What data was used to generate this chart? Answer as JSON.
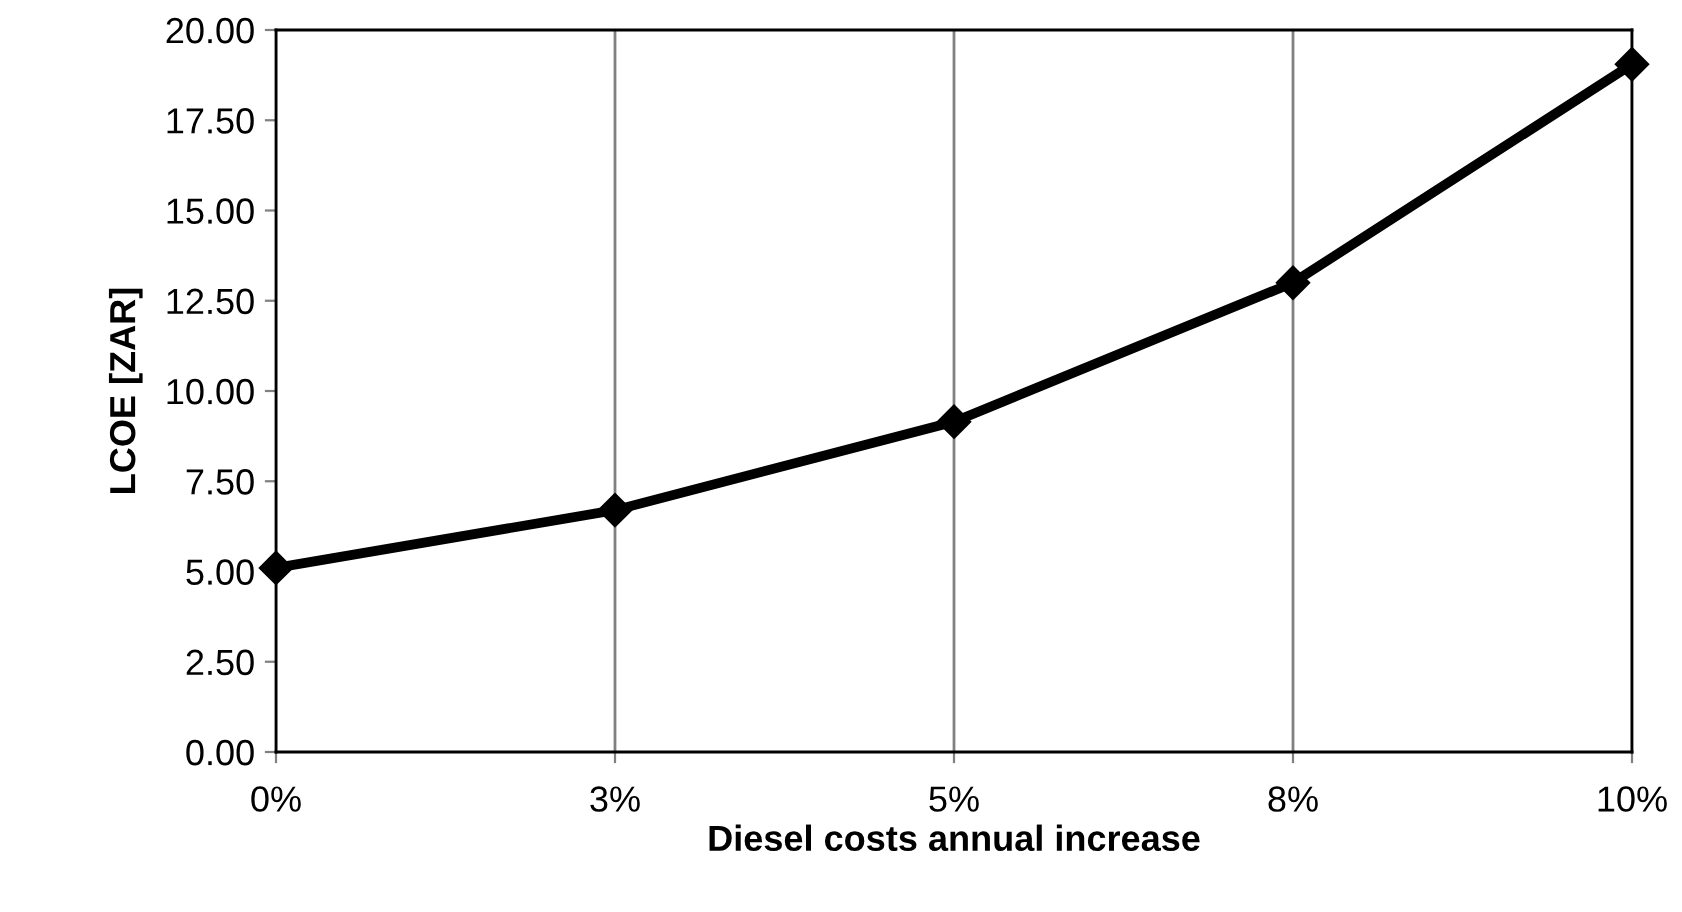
{
  "chart_data": {
    "type": "line",
    "xlabel": "Diesel costs annual increase",
    "ylabel": "LCOE [ZAR]",
    "categories": [
      "0%",
      "3%",
      "5%",
      "8%",
      "10%"
    ],
    "series": [
      {
        "color": "#000000",
        "values": [
          5.1,
          6.7,
          9.15,
          13.0,
          19.05
        ]
      }
    ],
    "ylim": [
      0,
      20
    ],
    "yticks": [
      {
        "value": 0,
        "label": "0.00"
      },
      {
        "value": 2.5,
        "label": "2.50"
      },
      {
        "value": 5,
        "label": "5.00"
      },
      {
        "value": 7.5,
        "label": "7.50"
      },
      {
        "value": 10,
        "label": "10.00"
      },
      {
        "value": 12.5,
        "label": "12.50"
      },
      {
        "value": 15,
        "label": "15.00"
      },
      {
        "value": 17.5,
        "label": "17.50"
      },
      {
        "value": 20,
        "label": "20.00"
      }
    ],
    "grid": "x",
    "marker": "diamond",
    "line_style": "solid",
    "legend": false
  }
}
